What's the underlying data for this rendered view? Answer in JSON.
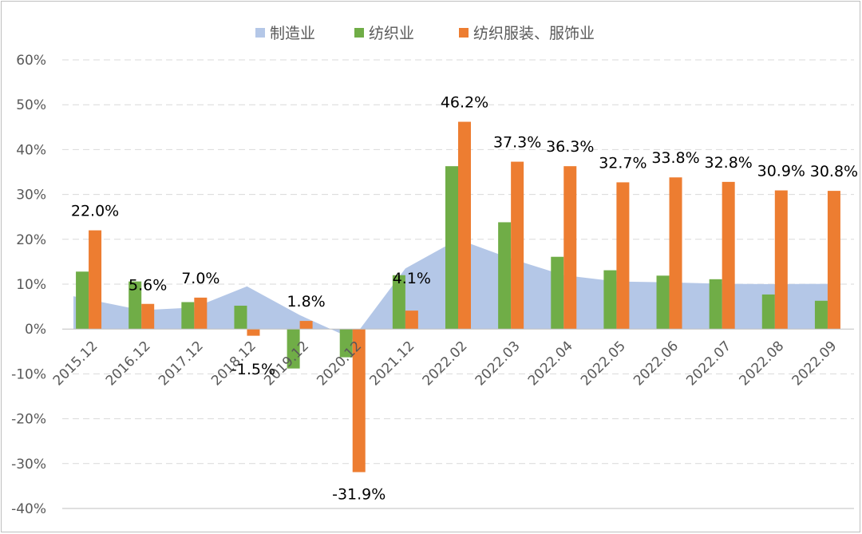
{
  "chart_data": {
    "type": "bar",
    "categories": [
      "2015.12",
      "2016.12",
      "2017.12",
      "2018.12",
      "2019.12",
      "2020.12",
      "2021.12",
      "2022.02",
      "2022.03",
      "2022.04",
      "2022.05",
      "2022.06",
      "2022.07",
      "2022.08",
      "2022.09"
    ],
    "series": [
      {
        "name": "制造业",
        "kind": "area",
        "color": "#b4c7e7",
        "values": [
          7.3,
          4.2,
          4.8,
          9.5,
          3.1,
          -2.2,
          13.5,
          20.0,
          15.7,
          12.0,
          10.6,
          10.4,
          10.1,
          10.0,
          10.1
        ]
      },
      {
        "name": "纺织业",
        "kind": "bar",
        "color": "#70ad47",
        "values": [
          12.8,
          10.6,
          6.0,
          5.2,
          -8.8,
          -6.3,
          12.0,
          36.3,
          23.8,
          16.1,
          13.1,
          11.9,
          11.1,
          7.7,
          6.3
        ]
      },
      {
        "name": "纺织服装、服饰业",
        "kind": "bar",
        "color": "#ed7d31",
        "values": [
          22.0,
          5.6,
          7.0,
          -1.5,
          1.8,
          -31.9,
          4.1,
          46.2,
          37.3,
          36.3,
          32.7,
          33.8,
          32.8,
          30.9,
          30.8
        ]
      }
    ],
    "data_labels": [
      "22.0%",
      "5.6%",
      "7.0%",
      "-1.5%",
      "1.8%",
      "-31.9%",
      "4.1%",
      "46.2%",
      "37.3%",
      "36.3%",
      "32.7%",
      "33.8%",
      "32.8%",
      "30.9%",
      "30.8%"
    ],
    "y_ticks": [
      "60%",
      "50%",
      "40%",
      "30%",
      "20%",
      "10%",
      "0%",
      "-10%",
      "-20%",
      "-30%",
      "-40%"
    ],
    "ylim": [
      -40,
      60
    ],
    "y_unit": "%",
    "grid": true,
    "legend_position": "top"
  }
}
